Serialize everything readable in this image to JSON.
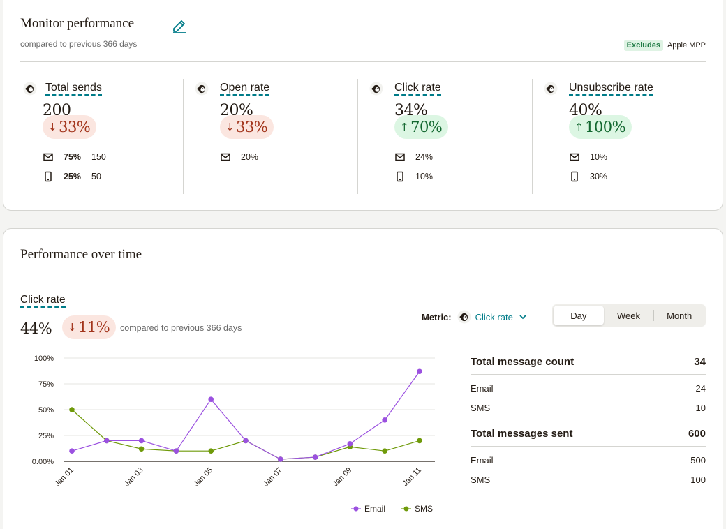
{
  "monitor": {
    "title": "Monitor performance",
    "subtitle": "compared to previous 366 days",
    "excludes_badge": "Excludes",
    "excludes_label": "Apple MPP",
    "metrics": [
      {
        "label": "Total sends",
        "value": "200",
        "change": "33%",
        "direction": "down",
        "rows": [
          {
            "icon": "envelope-icon",
            "pct": "75%",
            "count": "150"
          },
          {
            "icon": "phone-icon",
            "pct": "25%",
            "count": "50"
          }
        ]
      },
      {
        "label": "Open rate",
        "value": "20%",
        "change": "33%",
        "direction": "down",
        "rows": [
          {
            "icon": "envelope-icon",
            "pct": "20%",
            "count": ""
          }
        ]
      },
      {
        "label": "Click rate",
        "value": "34%",
        "change": "70%",
        "direction": "up",
        "rows": [
          {
            "icon": "envelope-icon",
            "pct": "24%",
            "count": ""
          },
          {
            "icon": "phone-icon",
            "pct": "10%",
            "count": ""
          }
        ]
      },
      {
        "label": "Unsubscribe rate",
        "value": "40%",
        "change": "100%",
        "direction": "up",
        "rows": [
          {
            "icon": "envelope-icon",
            "pct": "10%",
            "count": ""
          },
          {
            "icon": "phone-icon",
            "pct": "30%",
            "count": ""
          }
        ]
      }
    ]
  },
  "perf": {
    "title": "Performance over time",
    "metric_label": "Click rate",
    "metric_value": "44%",
    "metric_change": "11%",
    "compare_text": "compared to previous 366 days",
    "selector_label": "Metric:",
    "selector_value": "Click rate",
    "segments": [
      "Day",
      "Week",
      "Month"
    ],
    "active_segment": "Day",
    "summary": {
      "count_title": "Total message count",
      "count_total": "34",
      "count_rows": [
        {
          "label": "Email",
          "value": "24"
        },
        {
          "label": "SMS",
          "value": "10"
        }
      ],
      "sent_title": "Total messages sent",
      "sent_total": "600",
      "sent_rows": [
        {
          "label": "Email",
          "value": "500"
        },
        {
          "label": "SMS",
          "value": "100"
        }
      ]
    }
  },
  "colors": {
    "accent": "#007c89",
    "down_bg": "#fbe6e0",
    "down_fg": "#a2341b",
    "up_bg": "#dcf6e3",
    "up_fg": "#12672f",
    "email": "#9b51e0",
    "sms": "#6f9a0a"
  },
  "chart_data": {
    "type": "line",
    "x": [
      "Jan 01",
      "Jan 02",
      "Jan 03",
      "Jan 04",
      "Jan 05",
      "Jan 06",
      "Jan 07",
      "Jan 08",
      "Jan 09",
      "Jan 10",
      "Jan 11"
    ],
    "x_tick_labels": [
      "Jan 01",
      "Jan 03",
      "Jan 05",
      "Jan 07",
      "Jan 09",
      "Jan 11"
    ],
    "y_tick_labels": [
      "100%",
      "75%",
      "50%",
      "25%",
      "0.00%"
    ],
    "ylim": [
      0,
      100
    ],
    "grid": true,
    "legend_position": "bottom-right",
    "series": [
      {
        "name": "Email",
        "color": "#9b51e0",
        "values": [
          10,
          20,
          20,
          10,
          60,
          20,
          2,
          4,
          17,
          40,
          87
        ]
      },
      {
        "name": "SMS",
        "color": "#6f9a0a",
        "values": [
          50,
          20,
          12,
          10,
          10,
          20,
          2,
          4,
          14,
          10,
          20
        ]
      }
    ]
  }
}
